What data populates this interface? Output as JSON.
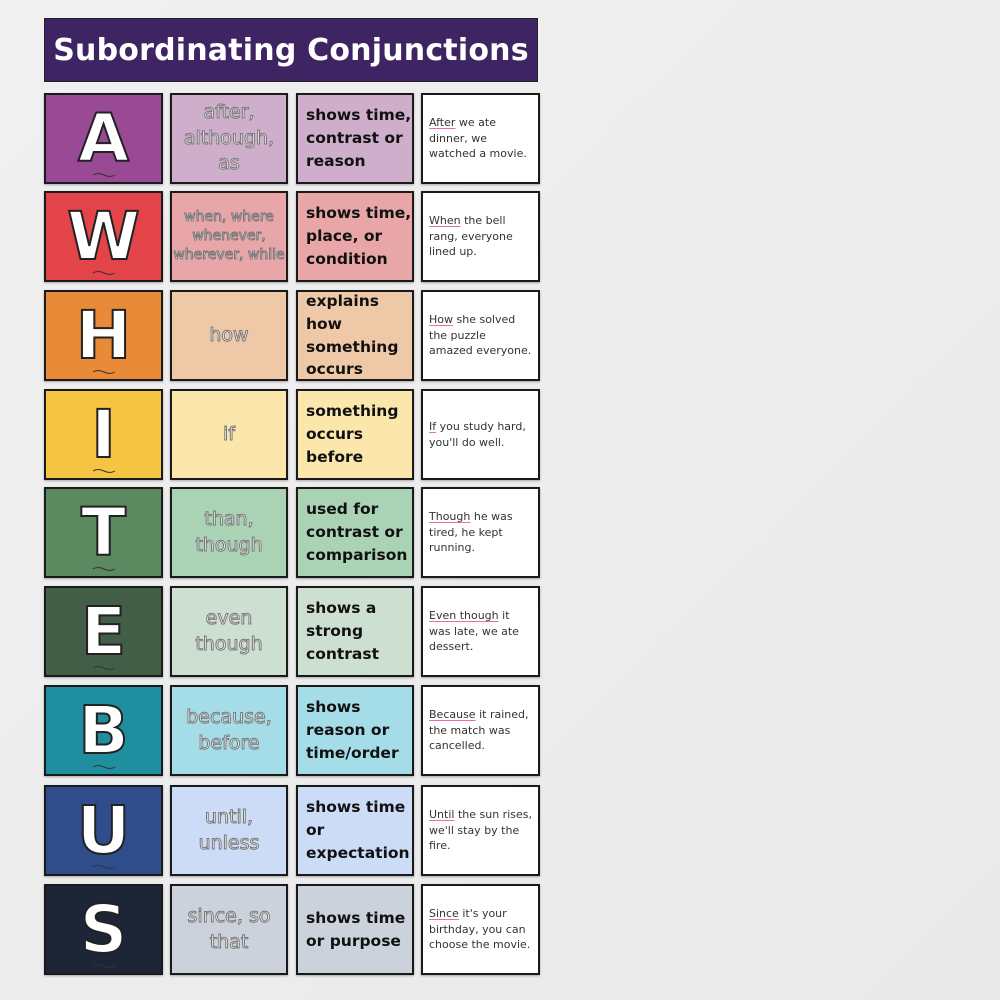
{
  "title": "Subordinating Conjunctions",
  "rows": [
    {
      "letter": "A",
      "words": "after, although, as",
      "meaning": "shows time, contrast or reason",
      "example_key": "After",
      "example_rest": " we ate dinner, we watched a movie.",
      "dark": "#9a4a95",
      "light": "#cfaecb"
    },
    {
      "letter": "W",
      "words": "when, where whenever, wherever, while",
      "meaning": "shows time, place, or condition",
      "example_key": "When",
      "example_rest": " the bell rang, everyone lined up.",
      "dark": "#e2444a",
      "light": "#e8a6a8"
    },
    {
      "letter": "H",
      "words": "how",
      "meaning": "explains how something occurs",
      "example_key": "How",
      "example_rest": " she solved the puzzle amazed everyone.",
      "dark": "#e88a37",
      "light": "#efc9a7"
    },
    {
      "letter": "I",
      "words": "if",
      "meaning": "something occurs before",
      "example_key": "If",
      "example_rest": " you study hard, you'll do well.",
      "dark": "#f6c443",
      "light": "#fbe6ab"
    },
    {
      "letter": "T",
      "words": "than, though",
      "meaning": "used for contrast or comparison",
      "example_key": "Though",
      "example_rest": " he was tired, he kept running.",
      "dark": "#5b8a61",
      "light": "#a9d3b4"
    },
    {
      "letter": "E",
      "words": "even though",
      "meaning": "shows a strong contrast",
      "example_key": "Even though",
      "example_rest": " it was late, we ate dessert.",
      "dark": "#435e46",
      "light": "#ccdfd1"
    },
    {
      "letter": "B",
      "words": "because, before",
      "meaning": "shows reason or time/order",
      "example_key": "Because",
      "example_rest": " it rained, the match was cancelled.",
      "dark": "#1f8fa0",
      "light": "#a4dde8"
    },
    {
      "letter": "U",
      "words": "until, unless",
      "meaning": "shows time or expectation",
      "example_key": "Until",
      "example_rest": " the sun rises, we'll stay by the fire.",
      "dark": "#2f4d8a",
      "light": "#cddcf6"
    },
    {
      "letter": "S",
      "words": "since, so that",
      "meaning": "shows time or purpose",
      "example_key": "Since",
      "example_rest": " it's your birthday, you can choose the movie.",
      "dark": "#1d2637",
      "light": "#ccd2dc"
    }
  ]
}
